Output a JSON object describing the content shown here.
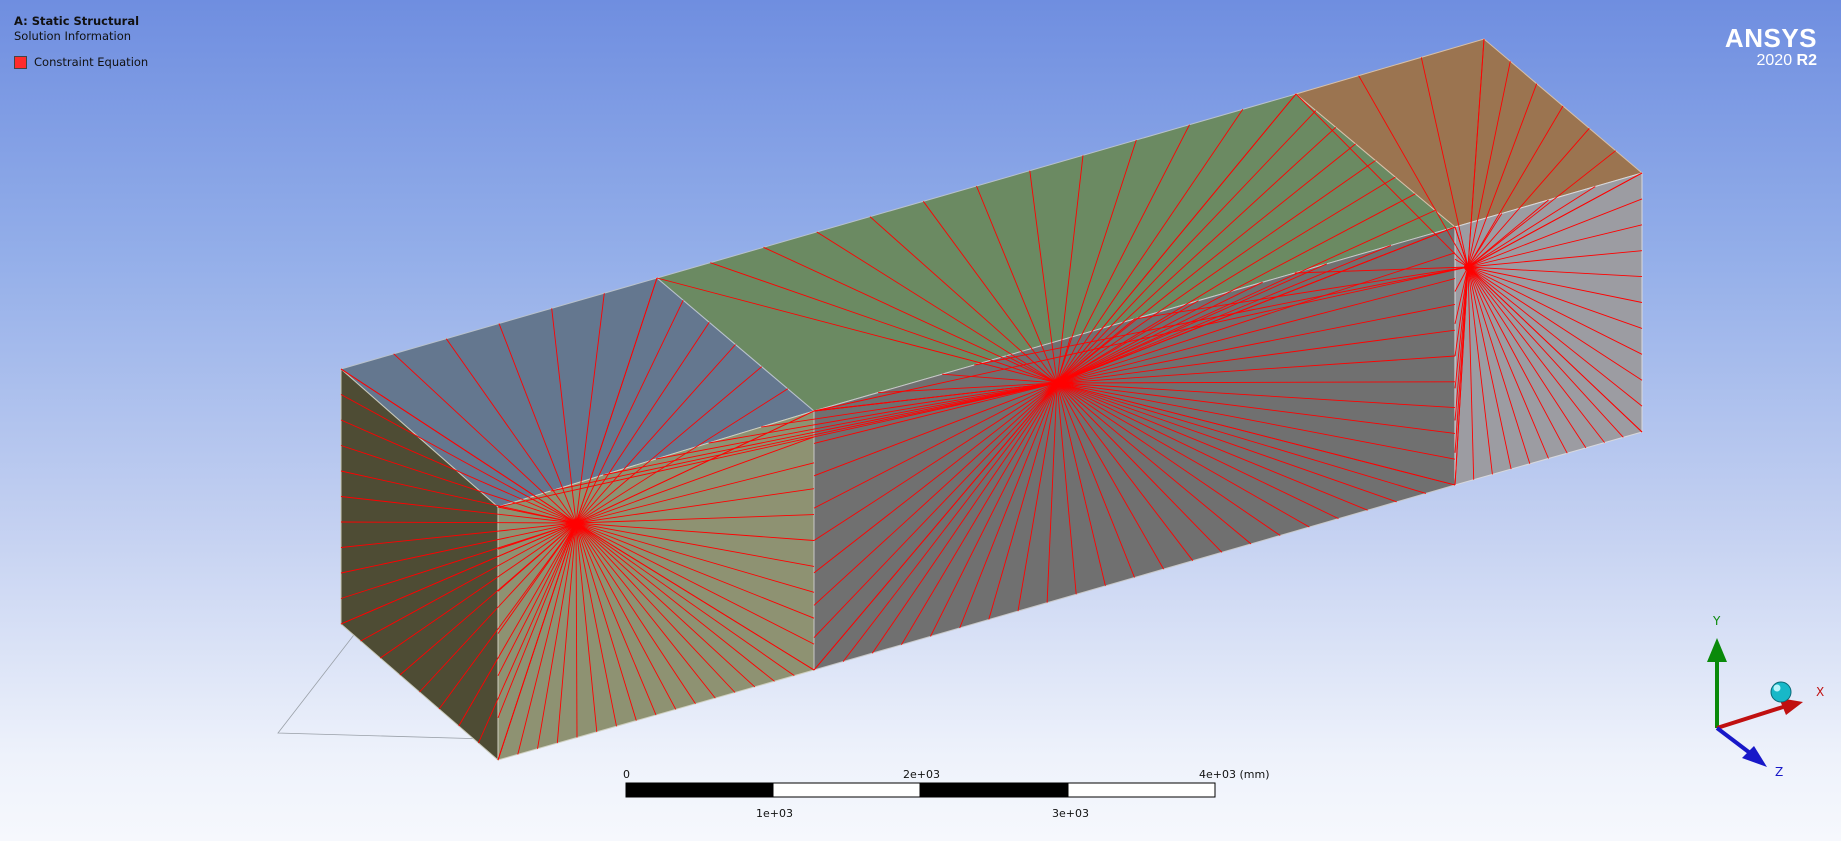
{
  "info": {
    "analysis_title": "A: Static Structural",
    "result_name": "Solution Information",
    "legend_label": "Constraint Equation",
    "legend_color": "#ff2b2b"
  },
  "brand": {
    "name": "ANSYS",
    "year": "2020",
    "release": "R2"
  },
  "scale_ruler": {
    "top_labels": [
      "0",
      "2e+03",
      "4e+03 (mm)"
    ],
    "bottom_labels": [
      "1e+03",
      "3e+03"
    ]
  },
  "triad": {
    "axis_y": "Y",
    "axis_x": "X",
    "axis_z": "Z"
  },
  "colors": {
    "constraint_lines": "#ff0000",
    "face_top_blue": "#64778f",
    "face_top_green": "#6b8a62",
    "face_top_orange": "#9b7450",
    "face_front_tan": "#8e9272",
    "face_front_gray": "#707070",
    "face_front_lightgray": "#9c9ca2",
    "face_end_olive": "#4e4c34"
  }
}
